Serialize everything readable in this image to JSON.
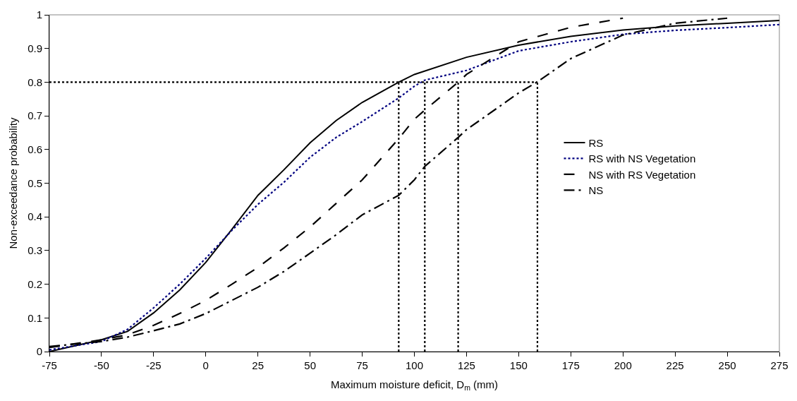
{
  "chart_data": {
    "type": "line",
    "xlabel": "Maximum moisture deficit, D$_{m}$ (mm)",
    "ylabel": "Non-exceedance probability",
    "xlim": [
      -75,
      275
    ],
    "xticks": [
      -75,
      -50,
      -25,
      0,
      25,
      50,
      75,
      100,
      125,
      150,
      175,
      200,
      225,
      250,
      275
    ],
    "ylim": [
      0,
      1
    ],
    "yticks": [
      0,
      0.1,
      0.2,
      0.3,
      0.4,
      0.5,
      0.6,
      0.7,
      0.8,
      0.9,
      1
    ],
    "grid": false,
    "legend": "right",
    "marker": "none",
    "series": [
      {
        "name": "RS",
        "color": "#000000",
        "line_style": "solid",
        "x": [
          -75,
          -50,
          -37.5,
          -25,
          -12.5,
          0,
          12.5,
          25,
          37.5,
          50,
          62.5,
          75,
          92.5,
          100,
          125,
          150,
          175,
          200,
          225,
          250,
          275
        ],
        "values": [
          0,
          0.035,
          0.06,
          0.115,
          0.183,
          0.265,
          0.363,
          0.464,
          0.54,
          0.62,
          0.686,
          0.74,
          0.8,
          0.823,
          0.874,
          0.91,
          0.936,
          0.955,
          0.967,
          0.975,
          0.983
        ]
      },
      {
        "name": "RS with NS Vegetation",
        "color": "#000080",
        "line_style": "dotted",
        "x": [
          -75,
          -50,
          -37.5,
          -25,
          -12.5,
          0,
          12.5,
          25,
          37.5,
          50,
          62.5,
          75,
          92.5,
          100,
          105,
          125,
          150,
          175,
          200,
          225,
          250,
          275
        ],
        "values": [
          0.005,
          0.03,
          0.066,
          0.13,
          0.2,
          0.277,
          0.36,
          0.437,
          0.503,
          0.577,
          0.636,
          0.683,
          0.753,
          0.788,
          0.806,
          0.835,
          0.893,
          0.92,
          0.942,
          0.954,
          0.962,
          0.971
        ]
      },
      {
        "name": "NS with RS Vegetation",
        "color": "#000000",
        "line_style": "dashed",
        "x": [
          -75,
          -50,
          -37.5,
          -25,
          -12.5,
          0,
          12.5,
          25,
          37.5,
          50,
          62.5,
          75,
          92.5,
          100,
          105,
          121,
          125,
          135,
          150,
          175,
          200
        ],
        "values": [
          0.012,
          0.035,
          0.05,
          0.078,
          0.113,
          0.152,
          0.2,
          0.25,
          0.308,
          0.37,
          0.44,
          0.51,
          0.632,
          0.69,
          0.717,
          0.8,
          0.823,
          0.862,
          0.92,
          0.963,
          0.99
        ]
      },
      {
        "name": "NS",
        "color": "#000000",
        "line_style": "dashdot",
        "x": [
          -75,
          -50,
          -37.5,
          -25,
          -12.5,
          0,
          12.5,
          25,
          37.5,
          50,
          62.5,
          75,
          92.5,
          100,
          105,
          121,
          125,
          150,
          159,
          175,
          200,
          225,
          250
        ],
        "values": [
          0.015,
          0.03,
          0.043,
          0.062,
          0.082,
          0.113,
          0.152,
          0.191,
          0.238,
          0.292,
          0.347,
          0.406,
          0.464,
          0.51,
          0.55,
          0.636,
          0.659,
          0.768,
          0.801,
          0.87,
          0.94,
          0.975,
          0.99
        ]
      },
      {
        "color": "#000000",
        "line_style": "dotted",
        "x": [
          -75,
          159
        ],
        "values": [
          0.8,
          0.8
        ]
      },
      {
        "color": "#000000",
        "line_style": "dotted",
        "x": [
          92.5,
          92.5
        ],
        "values": [
          0,
          0.8
        ]
      },
      {
        "color": "#000000",
        "line_style": "dotted",
        "x": [
          105,
          105
        ],
        "values": [
          0,
          0.8
        ]
      },
      {
        "color": "#000000",
        "line_style": "dotted",
        "x": [
          121,
          121
        ],
        "values": [
          0,
          0.8
        ]
      },
      {
        "color": "#000000",
        "line_style": "dotted",
        "x": [
          159,
          159
        ],
        "values": [
          0,
          0.8
        ]
      }
    ]
  }
}
